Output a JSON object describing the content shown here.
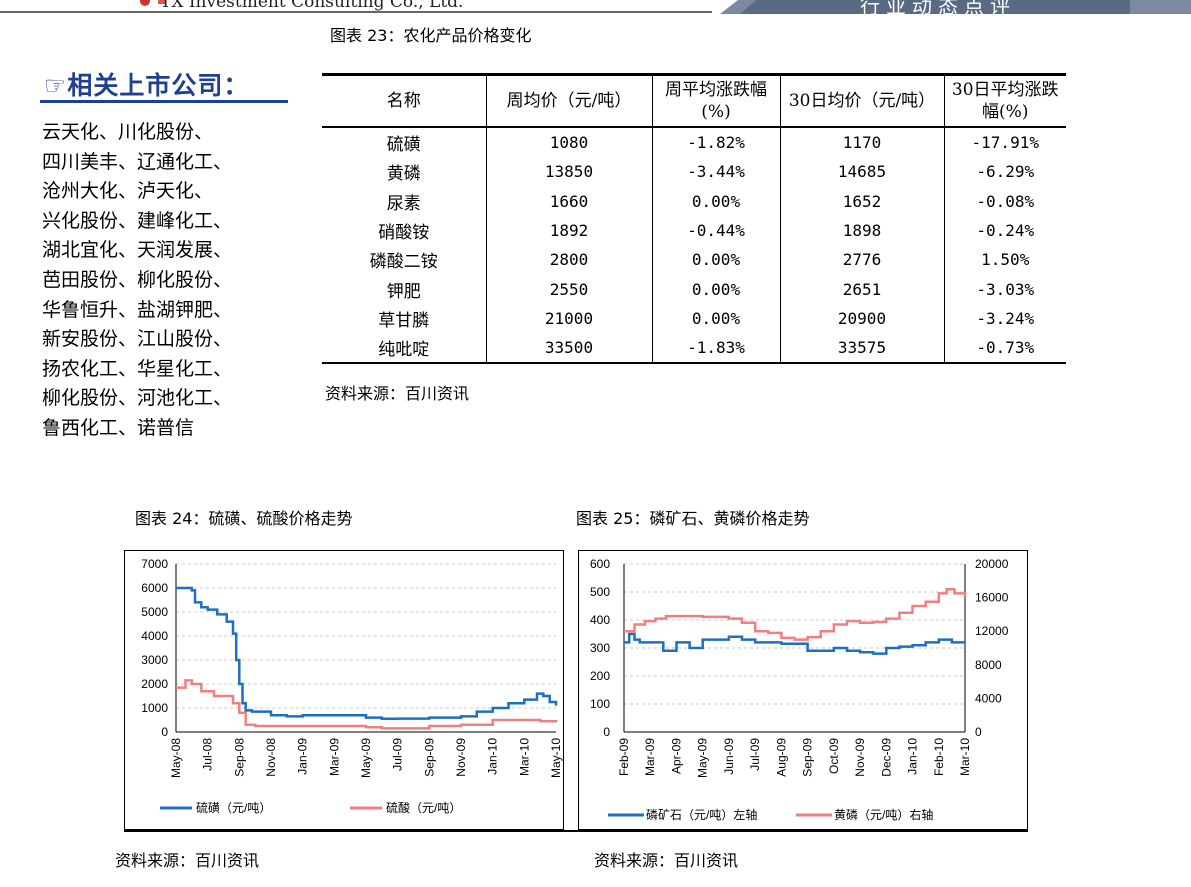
{
  "header": {
    "logo_text": "TX Investment Consulting Co., Ltd.",
    "right_text": "行业动态点评"
  },
  "table_caption": "图表 23：农化产品价格变化",
  "related": {
    "title": "☞相关上市公司：",
    "companies": [
      "云天化、川化股份、",
      "四川美丰、辽通化工、",
      "沧州大化、泸天化、",
      "兴化股份、建峰化工、",
      "湖北宜化、天润发展、",
      "芭田股份、柳化股份、",
      "华鲁恒升、盐湖钾肥、",
      "新安股份、江山股份、",
      "扬农化工、华星化工、",
      "柳化股份、河池化工、",
      "鲁西化工、诺普信"
    ]
  },
  "price_table": {
    "headers": [
      "名称",
      "周均价（元/吨）",
      "周平均涨跌幅(%)",
      "30日均价（元/吨）",
      "30日平均涨跌幅(%)"
    ],
    "rows": [
      [
        "硫磺",
        "1080",
        "-1.82%",
        "1170",
        "-17.91%"
      ],
      [
        "黄磷",
        "13850",
        "-3.44%",
        "14685",
        "-6.29%"
      ],
      [
        "尿素",
        "1660",
        "0.00%",
        "1652",
        "-0.08%"
      ],
      [
        "硝酸铵",
        "1892",
        "-0.44%",
        "1898",
        "-0.24%"
      ],
      [
        "磷酸二铵",
        "2800",
        "0.00%",
        "2776",
        "1.50%"
      ],
      [
        "钾肥",
        "2550",
        "0.00%",
        "2651",
        "-3.03%"
      ],
      [
        "草甘膦",
        "21000",
        "0.00%",
        "20900",
        "-3.24%"
      ],
      [
        "纯吡啶",
        "33500",
        "-1.83%",
        "33575",
        "-0.73%"
      ]
    ],
    "source": "资料来源：百川资讯"
  },
  "chart24_caption": "图表 24：硫磺、硫酸价格走势",
  "chart25_caption": "图表 25：磷矿石、黄磷价格走势",
  "source24": "资料来源：百川资讯",
  "source25": "资料来源：百川资讯",
  "colors": {
    "blue": "#1f6fc1",
    "pink": "#f08080",
    "brand": "#1f3f8f"
  },
  "chart_data": [
    {
      "type": "line",
      "title": "图表 24：硫磺、硫酸价格走势",
      "x_labels": [
        "May-08",
        "Jul-08",
        "Sep-08",
        "Nov-08",
        "Jan-09",
        "Mar-09",
        "May-09",
        "Jul-09",
        "Sep-09",
        "Nov-09",
        "Jan-10",
        "Mar-10",
        "May-10"
      ],
      "ylim": [
        0,
        7000
      ],
      "yticks": [
        "0",
        "1000",
        "2000",
        "3000",
        "4000",
        "5000",
        "6000",
        "7000"
      ],
      "legend_position": "bottom",
      "series": [
        {
          "name": "硫磺（元/吨）",
          "color": "#1f6fc1",
          "x": [
            0,
            0.3,
            0.5,
            0.6,
            0.8,
            1.0,
            1.3,
            1.6,
            1.8,
            1.9,
            2.0,
            2.1,
            2.2,
            2.4,
            2.6,
            3.0,
            3.5,
            4.0,
            4.5,
            5.0,
            6.0,
            6.5,
            7.0,
            8.0,
            8.5,
            9.0,
            9.5,
            10.0,
            10.5,
            11.0,
            11.4,
            11.6,
            11.8,
            12.0
          ],
          "y": [
            6000,
            6000,
            5900,
            5400,
            5200,
            5100,
            4900,
            4600,
            4100,
            3000,
            2000,
            1200,
            900,
            850,
            850,
            700,
            650,
            700,
            700,
            700,
            600,
            550,
            560,
            600,
            600,
            650,
            850,
            1000,
            1200,
            1350,
            1600,
            1500,
            1250,
            1100
          ]
        },
        {
          "name": "硫酸（元/吨）",
          "color": "#f08080",
          "x": [
            0,
            0.3,
            0.5,
            0.8,
            1.2,
            1.5,
            1.8,
            2.0,
            2.2,
            2.5,
            3.0,
            4.0,
            5.0,
            6.0,
            6.5,
            7.0,
            8.0,
            9.0,
            10.0,
            11.0,
            11.5,
            12.0
          ],
          "y": [
            1850,
            2150,
            2000,
            1700,
            1500,
            1500,
            1200,
            800,
            300,
            250,
            250,
            250,
            250,
            200,
            150,
            150,
            250,
            300,
            500,
            500,
            450,
            400
          ]
        }
      ]
    },
    {
      "type": "line",
      "title": "图表 25：磷矿石、黄磷价格走势",
      "x_labels": [
        "Feb-09",
        "Mar-09",
        "Apr-09",
        "May-09",
        "Jun-09",
        "Jul-09",
        "Aug-09",
        "Sep-09",
        "Oct-09",
        "Nov-09",
        "Dec-09",
        "Jan-10",
        "Feb-10",
        "Mar-10"
      ],
      "ylim_left": [
        0,
        600
      ],
      "ylim_right": [
        0,
        20000
      ],
      "yticks_left": [
        "0",
        "100",
        "200",
        "300",
        "400",
        "500",
        "600"
      ],
      "yticks_right": [
        "0",
        "4000",
        "8000",
        "12000",
        "16000",
        "20000"
      ],
      "legend_position": "bottom",
      "series": [
        {
          "name": "磷矿石（元/吨）左轴",
          "color": "#1f6fc1",
          "axis": "left",
          "x": [
            0,
            0.2,
            0.4,
            0.6,
            1.0,
            1.5,
            2.0,
            2.5,
            3.0,
            3.5,
            4.0,
            4.5,
            5.0,
            5.5,
            6.0,
            6.5,
            7.0,
            7.5,
            8.0,
            8.5,
            9.0,
            9.5,
            10.0,
            10.5,
            11.0,
            11.5,
            12.0,
            12.5,
            13.0
          ],
          "y": [
            320,
            350,
            330,
            320,
            320,
            290,
            320,
            300,
            330,
            330,
            340,
            330,
            320,
            320,
            315,
            315,
            290,
            290,
            300,
            290,
            285,
            280,
            300,
            305,
            310,
            320,
            330,
            320,
            320
          ]
        },
        {
          "name": "黄磷（元/吨）右轴",
          "color": "#f08080",
          "axis": "right",
          "x": [
            0,
            0.4,
            0.8,
            1.2,
            1.6,
            2.0,
            3.0,
            4.0,
            4.5,
            5.0,
            5.5,
            6.0,
            6.5,
            7.0,
            7.5,
            8.0,
            8.5,
            9.0,
            9.5,
            10.0,
            10.5,
            11.0,
            11.5,
            12.0,
            12.3,
            12.6,
            13.0
          ],
          "y": [
            12000,
            12800,
            13200,
            13500,
            13800,
            13800,
            13700,
            13500,
            13000,
            12000,
            11800,
            11200,
            11000,
            11300,
            12000,
            12800,
            13200,
            13000,
            13100,
            13500,
            14200,
            15000,
            15500,
            16500,
            17000,
            16500,
            16000
          ]
        }
      ]
    }
  ]
}
